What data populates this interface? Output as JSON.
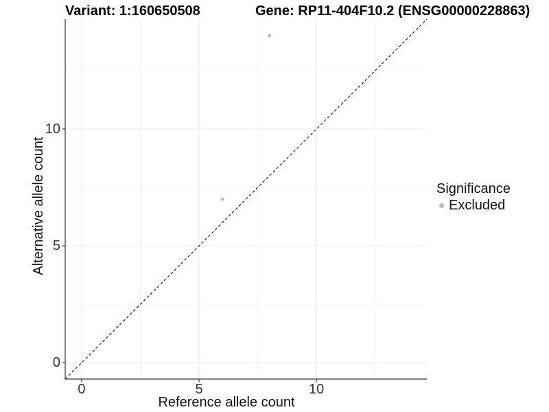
{
  "chart_data": {
    "type": "scatter",
    "title_left": "Variant: 1:160650508",
    "title_right": "Gene: RP11-404F10.2 (ENSG00000228863)",
    "xlabel": "Reference allele count",
    "ylabel": "Alternative allele count",
    "xlim": [
      -0.7,
      14.7
    ],
    "ylim": [
      -0.7,
      14.7
    ],
    "xticks": [
      0,
      5,
      10
    ],
    "yticks": [
      0,
      5,
      10
    ],
    "minor_xticks": [
      2.5,
      7.5,
      12.5
    ],
    "minor_yticks": [
      2.5,
      7.5,
      12.5
    ],
    "grid": "major and minor, very faint",
    "points": [
      {
        "x": 6,
        "y": 7,
        "series": "Excluded"
      },
      {
        "x": 8,
        "y": 14,
        "series": "Excluded"
      }
    ],
    "identity_line": {
      "slope": 1,
      "intercept": 0,
      "style": "dashed"
    },
    "legend": {
      "title": "Significance",
      "position": "right",
      "entries": [
        {
          "label": "Excluded",
          "color": "#bebebe"
        }
      ]
    },
    "colors": {
      "point": "#bebebe",
      "axis": "#333333",
      "tick_text": "#333333",
      "grid_major": "#ebebeb",
      "grid_minor": "#f6f6f6",
      "identity_line": "#000000",
      "background": "#ffffff"
    }
  }
}
